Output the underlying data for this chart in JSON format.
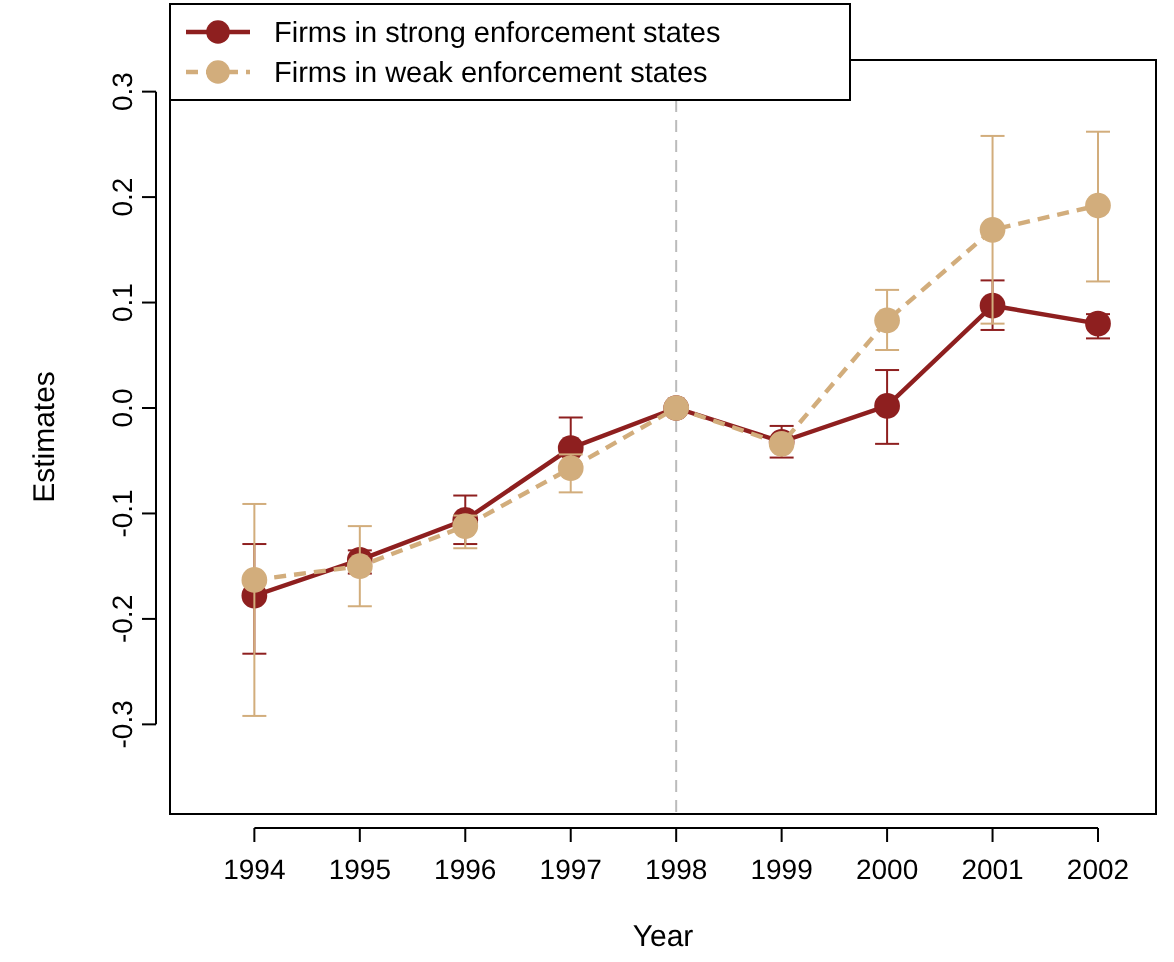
{
  "chart_data": {
    "type": "line",
    "xlabel": "Year",
    "ylabel": "Estimates",
    "x": [
      1994,
      1995,
      1996,
      1997,
      1998,
      1999,
      2000,
      2001,
      2002
    ],
    "series": [
      {
        "name": "Firms in strong enforcement states",
        "color": "#8e1f1f",
        "values": [
          -0.178,
          -0.144,
          -0.106,
          -0.038,
          0,
          -0.032,
          0.002,
          0.097,
          0.08
        ],
        "errors": [
          [
            -0.233,
            -0.129
          ],
          [
            -0.157,
            -0.135
          ],
          [
            -0.129,
            -0.083
          ],
          [
            -0.038,
            -0.009
          ],
          null,
          [
            -0.047,
            -0.017
          ],
          [
            -0.034,
            0.036
          ],
          [
            0.074,
            0.121
          ],
          [
            0.066,
            0.089
          ]
        ],
        "line_style": "solid"
      },
      {
        "name": "Firms in weak enforcement states",
        "color": "#d2ad7c",
        "values": [
          -0.163,
          -0.15,
          -0.112,
          -0.057,
          0,
          -0.034,
          0.083,
          0.169,
          0.192
        ],
        "errors": [
          [
            -0.292,
            -0.091
          ],
          [
            -0.188,
            -0.112
          ],
          [
            -0.133,
            -0.102
          ],
          [
            -0.08,
            -0.044
          ],
          null,
          null,
          [
            0.055,
            0.112
          ],
          [
            0.08,
            0.258
          ],
          [
            0.12,
            0.262
          ]
        ],
        "line_style": "dashed"
      }
    ],
    "xlim": [
      1993.2,
      2002.55
    ],
    "xticks": [
      1994,
      1995,
      1996,
      1997,
      1998,
      1999,
      2000,
      2001,
      2002
    ],
    "ylim": [
      -0.385,
      0.33
    ],
    "yticks": [
      -0.3,
      -0.2,
      -0.1,
      {
        "value": 0,
        "label": "0.0"
      },
      0.1,
      0.2,
      0.3
    ],
    "ref_lines": [
      {
        "axis": "x",
        "value": 1998,
        "color": "#bbbbbb",
        "line_style": "dashed"
      }
    ],
    "legend": "top left",
    "marker": "circle",
    "grid": false
  }
}
